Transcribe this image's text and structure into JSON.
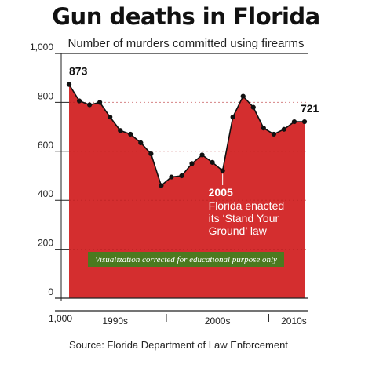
{
  "chart_data": {
    "type": "area",
    "title": "Gun deaths in Florida",
    "subtitle": "Number of murders committed using firearms",
    "source": "Source: Florida Department of Law Enforcement",
    "x": [
      1990,
      1991,
      1992,
      1993,
      1994,
      1995,
      1996,
      1997,
      1998,
      1999,
      2000,
      2001,
      2002,
      2003,
      2004,
      2005,
      2006,
      2007,
      2008,
      2009,
      2010,
      2011,
      2012,
      2013
    ],
    "values": [
      873,
      806,
      790,
      800,
      740,
      685,
      670,
      635,
      590,
      460,
      495,
      500,
      550,
      585,
      555,
      521,
      740,
      825,
      780,
      695,
      670,
      690,
      721,
      721
    ],
    "y_axis_inverted": true,
    "ylim": [
      0,
      1000
    ],
    "yticks": [
      {
        "value": 0,
        "label": "0"
      },
      {
        "value": 200,
        "label": "200"
      },
      {
        "value": 400,
        "label": "400"
      },
      {
        "value": 600,
        "label": "600"
      },
      {
        "value": 800,
        "label": "800"
      },
      {
        "value": 1000,
        "label": "1,000"
      }
    ],
    "bottom_tick_label": "1,000",
    "x_groups": [
      {
        "label": "1990s",
        "from": 1990,
        "to": 1999
      },
      {
        "label": "2000s",
        "from": 2000,
        "to": 2009
      },
      {
        "label": "2010s",
        "from": 2010,
        "to": 2013
      }
    ],
    "value_labels": [
      {
        "index": 0,
        "text": "873"
      },
      {
        "index": 22,
        "text": "721"
      }
    ],
    "annotation": {
      "year": "2005",
      "lines": [
        "Florida enacted",
        "its ‘Stand Your",
        "Ground’ law"
      ]
    },
    "fill_color": "#d42e2f",
    "line_color": "#111111",
    "badge": {
      "text": "Visualization corrected  for educational purpose only",
      "color": "#4b7a1f"
    }
  }
}
